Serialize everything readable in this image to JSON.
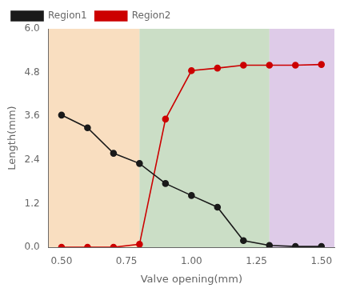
{
  "chart_data": {
    "type": "line",
    "xlabel": "Valve opening(mm)",
    "ylabel": "Length(mm)",
    "x": [
      0.5,
      0.6,
      0.7,
      0.8,
      0.9,
      1.0,
      1.1,
      1.2,
      1.3,
      1.4,
      1.5
    ],
    "series": [
      {
        "name": "Region1",
        "color": "#1a1a1a",
        "values": [
          3.63,
          3.28,
          2.58,
          2.3,
          1.75,
          1.42,
          1.1,
          0.18,
          0.05,
          0.02,
          0.02
        ]
      },
      {
        "name": "Region2",
        "color": "#cc0000",
        "values": [
          0.0,
          0.0,
          0.0,
          0.08,
          3.52,
          4.85,
          4.92,
          5.0,
          5.0,
          5.0,
          5.02
        ]
      }
    ],
    "zones": [
      {
        "range": [
          0.45,
          0.8
        ],
        "color": "#f5c896"
      },
      {
        "range": [
          0.8,
          1.3
        ],
        "color": "#a8c8a0"
      },
      {
        "range": [
          1.3,
          1.55
        ],
        "color": "#c8a8d8"
      }
    ],
    "xlim": [
      0.45,
      1.55
    ],
    "ylim": [
      0.0,
      6.0
    ],
    "xticks": [
      {
        "value": 0.5,
        "label": "0.50"
      },
      {
        "value": 0.75,
        "label": "0.75"
      },
      {
        "value": 1.0,
        "label": "1.00"
      },
      {
        "value": 1.25,
        "label": "1.25"
      },
      {
        "value": 1.5,
        "label": "1.50"
      }
    ],
    "yticks": [
      {
        "value": 0,
        "label": "0.0"
      },
      1.2,
      2.4,
      3.6,
      4.8,
      {
        "value": 6,
        "label": "6.0"
      }
    ],
    "grid": false,
    "legend": "upper left",
    "marker": "o",
    "line_style": "solid"
  }
}
